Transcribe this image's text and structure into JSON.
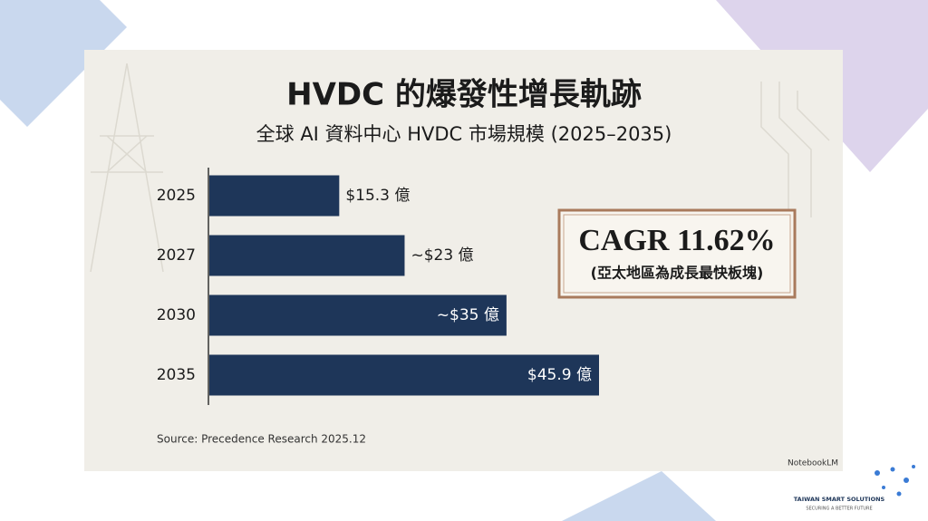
{
  "chart_data": {
    "type": "bar",
    "orientation": "horizontal",
    "title": "HVDC 的爆發性增長軌跡",
    "subtitle": "全球 AI 資料中心 HVDC 市場規模 (2025–2035)",
    "categories": [
      "2025",
      "2027",
      "2030",
      "2035"
    ],
    "values": [
      15.3,
      23,
      35,
      45.9
    ],
    "value_labels": [
      "$15.3 億",
      "~$23 億",
      "~$35 億",
      "$45.9 億"
    ],
    "color": "#1e3659",
    "annotations": [
      "CAGR 11.62%",
      "(亞太地區為成長最快板塊)"
    ],
    "source": "Source: Precedence Research 2025.12"
  },
  "watermark": "NotebookLM",
  "logo": {
    "name": "TAIWAN SMART SOLUTIONS",
    "tagline": "SECURING A BETTER FUTURE"
  }
}
